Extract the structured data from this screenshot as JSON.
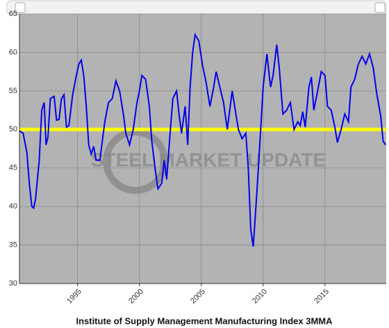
{
  "chart_data": {
    "type": "line",
    "title": "Institute of Supply Management Manufacturing Index 3MMA",
    "watermark": "STEEL MARKET UPDATE",
    "xlim": [
      1990.3,
      2019.95
    ],
    "xticks": [
      1995,
      2000,
      2005,
      2010,
      2015
    ],
    "ylim": [
      30,
      65
    ],
    "yticks": [
      30,
      35,
      40,
      45,
      50,
      55,
      60,
      65
    ],
    "grid": true,
    "reference_line": {
      "value": 50,
      "color": "#ffff00"
    },
    "x": [
      1990.3,
      1990.6,
      1990.9,
      1991.1,
      1991.3,
      1991.45,
      1991.6,
      1991.9,
      1992.1,
      1992.3,
      1992.45,
      1992.6,
      1992.8,
      1993.1,
      1993.3,
      1993.5,
      1993.7,
      1993.9,
      1994.1,
      1994.3,
      1994.6,
      1994.9,
      1995.1,
      1995.3,
      1995.5,
      1995.7,
      1995.9,
      1996.1,
      1996.3,
      1996.5,
      1996.8,
      1997.0,
      1997.2,
      1997.5,
      1997.8,
      1998.1,
      1998.4,
      1998.7,
      1998.9,
      1999.2,
      1999.5,
      1999.8,
      2000.0,
      2000.2,
      2000.5,
      2000.8,
      2001.0,
      2001.3,
      2001.5,
      2001.8,
      2002.0,
      2002.2,
      2002.5,
      2002.7,
      2003.0,
      2003.2,
      2003.4,
      2003.7,
      2003.9,
      2004.1,
      2004.3,
      2004.5,
      2004.8,
      2005.1,
      2005.4,
      2005.7,
      2006.0,
      2006.2,
      2006.5,
      2006.8,
      2007.1,
      2007.3,
      2007.5,
      2007.8,
      2008.0,
      2008.3,
      2008.6,
      2008.8,
      2009.0,
      2009.2,
      2009.5,
      2009.8,
      2010.0,
      2010.3,
      2010.6,
      2010.8,
      2011.1,
      2011.3,
      2011.6,
      2011.9,
      2012.2,
      2012.5,
      2012.8,
      2013.0,
      2013.2,
      2013.4,
      2013.7,
      2013.9,
      2014.1,
      2014.4,
      2014.7,
      2015.0,
      2015.2,
      2015.5,
      2015.8,
      2016.0,
      2016.3,
      2016.6,
      2016.9,
      2017.1,
      2017.4,
      2017.7,
      2018.0,
      2018.3,
      2018.6,
      2018.9,
      2019.2,
      2019.5,
      2019.7,
      2019.9
    ],
    "series": [
      {
        "name": "ISM Manufacturing Index 3MMA",
        "color": "#0000ee",
        "values": [
          49.8,
          49.5,
          47,
          43,
          40,
          39.8,
          41,
          46,
          52.5,
          53.5,
          48,
          49,
          54,
          54.3,
          51.2,
          51.3,
          54,
          54.5,
          50.3,
          50.5,
          54.5,
          57,
          58.5,
          59,
          57,
          53,
          48,
          46.8,
          47.8,
          46,
          46,
          48.5,
          51,
          53.5,
          54,
          56.3,
          55,
          52,
          49.5,
          48,
          50,
          53.5,
          55,
          57,
          56.5,
          53,
          48.5,
          44.5,
          42.3,
          43,
          46,
          43.5,
          50,
          54,
          55,
          52,
          49.5,
          53,
          48,
          55.5,
          60,
          62.3,
          61.5,
          58.3,
          56,
          53,
          55.5,
          57.5,
          55.5,
          53.5,
          50,
          52.5,
          55,
          52,
          50,
          48.8,
          49.5,
          45,
          37,
          34.8,
          42,
          50,
          55.5,
          59.8,
          55.5,
          57,
          61,
          58,
          52,
          52.5,
          53.5,
          50,
          51,
          50.5,
          52.3,
          50.3,
          55.5,
          56.8,
          52.5,
          55,
          57.5,
          57,
          53,
          52.5,
          50.3,
          48.3,
          50,
          52,
          51,
          55.5,
          56.5,
          58.5,
          59.5,
          58.5,
          59.8,
          58,
          54.5,
          51.8,
          48.5,
          48
        ]
      }
    ]
  }
}
